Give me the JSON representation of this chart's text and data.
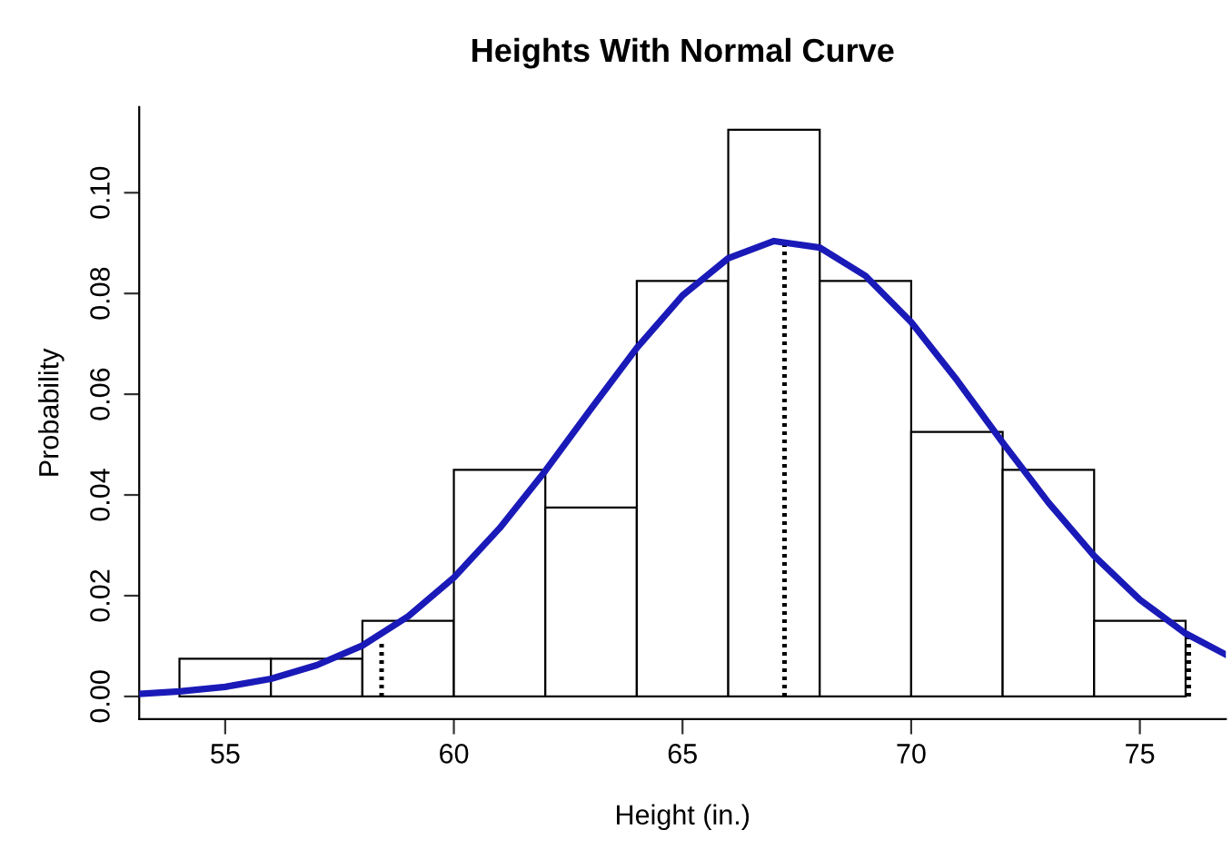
{
  "chart_data": {
    "type": "histogram",
    "title": "Heights With Normal Curve",
    "xlabel": "Height (in.)",
    "ylabel": "Probability",
    "bins": [
      54,
      56,
      58,
      60,
      62,
      64,
      66,
      68,
      70,
      72,
      74,
      76
    ],
    "values": [
      0.0075,
      0.0075,
      0.015,
      0.045,
      0.0375,
      0.0825,
      0.1125,
      0.0825,
      0.0525,
      0.045,
      0.015
    ],
    "color": "#ffffff",
    "series": [
      {
        "type": "line",
        "color": "#1a1ab8",
        "line_style": "solid",
        "x": [
          53.12,
          54,
          55,
          56,
          57,
          58,
          59,
          60,
          61,
          62,
          63,
          64,
          65,
          66,
          67,
          68,
          69,
          70,
          71,
          72,
          73,
          74,
          75,
          76,
          76.88
        ],
        "values": [
          0.0005,
          0.001,
          0.0019,
          0.0035,
          0.0062,
          0.0101,
          0.0159,
          0.0236,
          0.0334,
          0.0448,
          0.0571,
          0.0692,
          0.0796,
          0.087,
          0.0904,
          0.0891,
          0.0835,
          0.0743,
          0.0628,
          0.0504,
          0.0385,
          0.0279,
          0.0192,
          0.0125,
          0.0083
        ]
      },
      {
        "type": "line",
        "color": "#000000",
        "line_style": "dotted",
        "x": [
          58.42,
          58.42
        ],
        "values": [
          0,
          0.0113
        ]
      },
      {
        "type": "line",
        "color": "#000000",
        "line_style": "dotted",
        "x": [
          67.23,
          67.23
        ],
        "values": [
          0,
          0.0905
        ]
      },
      {
        "type": "line",
        "color": "#000000",
        "line_style": "dotted",
        "x": [
          76.07,
          76.07
        ],
        "values": [
          0,
          0.0121
        ]
      }
    ],
    "xlim": [
      53.12,
      76.88
    ],
    "ylim": [
      -0.0045,
      0.117
    ],
    "xticks": [
      55,
      60,
      65,
      70,
      75
    ],
    "yticks": [
      {
        "value": 0,
        "label": "0.00"
      },
      {
        "value": 0.02,
        "label": "0.02"
      },
      {
        "value": 0.04,
        "label": "0.04"
      },
      {
        "value": 0.06,
        "label": "0.06"
      },
      {
        "value": 0.08,
        "label": "0.08"
      },
      {
        "value": 0.1,
        "label": "0.10"
      }
    ]
  }
}
